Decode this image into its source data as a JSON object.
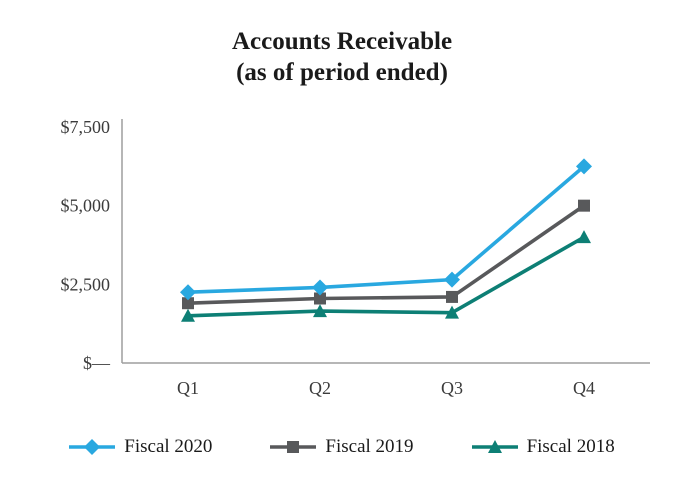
{
  "title": {
    "line1": "Accounts Receivable",
    "line2": "(as of period ended)"
  },
  "chart_data": {
    "type": "line",
    "categories": [
      "Q1",
      "Q2",
      "Q3",
      "Q4"
    ],
    "series": [
      {
        "name": "Fiscal 2020",
        "values": [
          2250,
          2400,
          2650,
          6250
        ],
        "color": "#29a8e0",
        "marker": "diamond"
      },
      {
        "name": "Fiscal 2019",
        "values": [
          1900,
          2050,
          2100,
          5000
        ],
        "color": "#58595b",
        "marker": "square"
      },
      {
        "name": "Fiscal 2018",
        "values": [
          1500,
          1650,
          1600,
          4000
        ],
        "color": "#0d7f75",
        "marker": "triangle"
      }
    ],
    "ylim": [
      0,
      7500
    ],
    "yticks": [
      0,
      2500,
      5000,
      7500
    ],
    "ytick_labels": [
      "$—",
      "$2,500",
      "$5,000",
      "$7,500"
    ],
    "axis_color": "#9d9d9d",
    "grid": false,
    "legend_position": "bottom"
  }
}
